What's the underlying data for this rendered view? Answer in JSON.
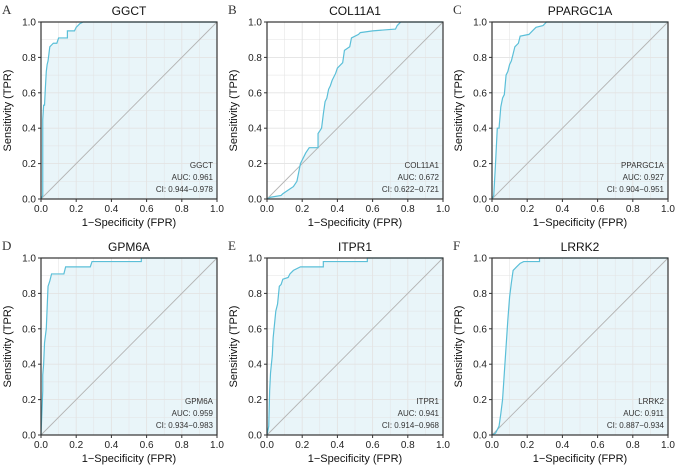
{
  "chart_data": [
    {
      "type": "line",
      "panel": "A",
      "title": "GGCT",
      "xlabel": "1−Specificity (FPR)",
      "ylabel": "Sensitivity (TPR)",
      "xlim": [
        0,
        1
      ],
      "ylim": [
        0,
        1
      ],
      "xticks": [
        "0.0",
        "0.2",
        "0.4",
        "0.6",
        "0.8",
        "1.0"
      ],
      "yticks": [
        "0.0",
        "0.2",
        "0.4",
        "0.6",
        "0.8",
        "1.0"
      ],
      "legend": [
        "GGCT",
        "AUC: 0.961",
        "CI: 0.944−0.978"
      ],
      "auc": 0.961,
      "points": [
        [
          0,
          0
        ],
        [
          0.01,
          0.02
        ],
        [
          0.01,
          0.45
        ],
        [
          0.015,
          0.53
        ],
        [
          0.02,
          0.53
        ],
        [
          0.025,
          0.63
        ],
        [
          0.03,
          0.72
        ],
        [
          0.035,
          0.76
        ],
        [
          0.04,
          0.78
        ],
        [
          0.05,
          0.86
        ],
        [
          0.06,
          0.87
        ],
        [
          0.07,
          0.88
        ],
        [
          0.09,
          0.88
        ],
        [
          0.1,
          0.91
        ],
        [
          0.15,
          0.91
        ],
        [
          0.15,
          0.95
        ],
        [
          0.19,
          0.95
        ],
        [
          0.2,
          0.97
        ],
        [
          0.21,
          0.98
        ],
        [
          0.22,
          0.99
        ],
        [
          0.24,
          1
        ],
        [
          1,
          1
        ]
      ]
    },
    {
      "type": "line",
      "panel": "B",
      "title": "COL11A1",
      "xlabel": "1−Specificity (FPR)",
      "ylabel": "Sensitivity (TPR)",
      "xlim": [
        0,
        1
      ],
      "ylim": [
        0,
        1
      ],
      "xticks": [
        "0.0",
        "0.2",
        "0.4",
        "0.6",
        "0.8",
        "1.0"
      ],
      "yticks": [
        "0.0",
        "0.2",
        "0.4",
        "0.6",
        "0.8",
        "1.0"
      ],
      "legend": [
        "COL11A1",
        "AUC: 0.672",
        "CI: 0.622−0.721"
      ],
      "auc": 0.672,
      "points": [
        [
          0,
          0
        ],
        [
          0.02,
          0.01
        ],
        [
          0.08,
          0.02
        ],
        [
          0.09,
          0.03
        ],
        [
          0.12,
          0.05
        ],
        [
          0.15,
          0.07
        ],
        [
          0.17,
          0.1
        ],
        [
          0.18,
          0.15
        ],
        [
          0.19,
          0.2
        ],
        [
          0.2,
          0.22
        ],
        [
          0.22,
          0.26
        ],
        [
          0.24,
          0.29
        ],
        [
          0.29,
          0.29
        ],
        [
          0.29,
          0.37
        ],
        [
          0.31,
          0.4
        ],
        [
          0.32,
          0.48
        ],
        [
          0.33,
          0.55
        ],
        [
          0.34,
          0.57
        ],
        [
          0.35,
          0.62
        ],
        [
          0.36,
          0.64
        ],
        [
          0.37,
          0.67
        ],
        [
          0.39,
          0.71
        ],
        [
          0.4,
          0.74
        ],
        [
          0.43,
          0.77
        ],
        [
          0.44,
          0.84
        ],
        [
          0.47,
          0.86
        ],
        [
          0.48,
          0.91
        ],
        [
          0.52,
          0.93
        ],
        [
          0.53,
          0.94
        ],
        [
          0.6,
          0.95
        ],
        [
          0.73,
          0.96
        ],
        [
          0.74,
          0.98
        ],
        [
          0.76,
          1
        ],
        [
          1,
          1
        ]
      ]
    },
    {
      "type": "line",
      "panel": "C",
      "title": "PPARGC1A",
      "xlabel": "1−Specificity (FPR)",
      "ylabel": "Sensitivity (TPR)",
      "xlim": [
        0,
        1
      ],
      "ylim": [
        0,
        1
      ],
      "xticks": [
        "0.0",
        "0.2",
        "0.4",
        "0.6",
        "0.8",
        "1.0"
      ],
      "yticks": [
        "0.0",
        "0.2",
        "0.4",
        "0.6",
        "0.8",
        "1.0"
      ],
      "legend": [
        "PPARGC1A",
        "AUC: 0.927",
        "CI: 0.904−0.951"
      ],
      "auc": 0.927,
      "points": [
        [
          0,
          0
        ],
        [
          0.01,
          0.02
        ],
        [
          0.02,
          0.2
        ],
        [
          0.03,
          0.4
        ],
        [
          0.04,
          0.4
        ],
        [
          0.05,
          0.52
        ],
        [
          0.06,
          0.57
        ],
        [
          0.07,
          0.59
        ],
        [
          0.08,
          0.7
        ],
        [
          0.09,
          0.72
        ],
        [
          0.1,
          0.76
        ],
        [
          0.11,
          0.78
        ],
        [
          0.12,
          0.82
        ],
        [
          0.13,
          0.86
        ],
        [
          0.15,
          0.88
        ],
        [
          0.16,
          0.92
        ],
        [
          0.21,
          0.93
        ],
        [
          0.23,
          0.95
        ],
        [
          0.25,
          0.97
        ],
        [
          0.29,
          0.98
        ],
        [
          0.31,
          1
        ],
        [
          1,
          1
        ]
      ]
    },
    {
      "type": "line",
      "panel": "D",
      "title": "GPM6A",
      "xlabel": "1−Specificity (FPR)",
      "ylabel": "Sensitivity (TPR)",
      "xlim": [
        0,
        1
      ],
      "ylim": [
        0,
        1
      ],
      "xticks": [
        "0.0",
        "0.2",
        "0.4",
        "0.6",
        "0.8",
        "1.0"
      ],
      "yticks": [
        "0.0",
        "0.2",
        "0.4",
        "0.6",
        "0.8",
        "1.0"
      ],
      "legend": [
        "GPM6A",
        "AUC: 0.959",
        "CI: 0.934−0.983"
      ],
      "auc": 0.959,
      "points": [
        [
          0,
          0
        ],
        [
          0.01,
          0.25
        ],
        [
          0.01,
          0.34
        ],
        [
          0.015,
          0.4
        ],
        [
          0.02,
          0.52
        ],
        [
          0.03,
          0.6
        ],
        [
          0.035,
          0.72
        ],
        [
          0.04,
          0.84
        ],
        [
          0.05,
          0.87
        ],
        [
          0.06,
          0.91
        ],
        [
          0.13,
          0.91
        ],
        [
          0.14,
          0.95
        ],
        [
          0.28,
          0.95
        ],
        [
          0.29,
          0.98
        ],
        [
          0.57,
          0.98
        ],
        [
          0.57,
          1
        ],
        [
          1,
          1
        ]
      ]
    },
    {
      "type": "line",
      "panel": "E",
      "title": "ITPR1",
      "xlabel": "1−Specificity (FPR)",
      "ylabel": "Sensitivity (TPR)",
      "xlim": [
        0,
        1
      ],
      "ylim": [
        0,
        1
      ],
      "xticks": [
        "0.0",
        "0.2",
        "0.4",
        "0.6",
        "0.8",
        "1.0"
      ],
      "yticks": [
        "0.0",
        "0.2",
        "0.4",
        "0.6",
        "0.8",
        "1.0"
      ],
      "legend": [
        "ITPR1",
        "AUC: 0.941",
        "CI: 0.914−0.968"
      ],
      "auc": 0.941,
      "points": [
        [
          0,
          0
        ],
        [
          0.01,
          0.05
        ],
        [
          0.015,
          0.25
        ],
        [
          0.02,
          0.35
        ],
        [
          0.03,
          0.45
        ],
        [
          0.035,
          0.55
        ],
        [
          0.05,
          0.7
        ],
        [
          0.06,
          0.74
        ],
        [
          0.07,
          0.84
        ],
        [
          0.08,
          0.85
        ],
        [
          0.09,
          0.88
        ],
        [
          0.12,
          0.89
        ],
        [
          0.13,
          0.91
        ],
        [
          0.15,
          0.93
        ],
        [
          0.19,
          0.95
        ],
        [
          0.32,
          0.95
        ],
        [
          0.32,
          0.98
        ],
        [
          0.57,
          0.98
        ],
        [
          0.57,
          1
        ],
        [
          1,
          1
        ]
      ]
    },
    {
      "type": "line",
      "panel": "F",
      "title": "LRRK2",
      "xlabel": "1−Specificity (FPR)",
      "ylabel": "Sensitivity (TPR)",
      "xlim": [
        0,
        1
      ],
      "ylim": [
        0,
        1
      ],
      "xticks": [
        "0.0",
        "0.2",
        "0.4",
        "0.6",
        "0.8",
        "1.0"
      ],
      "yticks": [
        "0.0",
        "0.2",
        "0.4",
        "0.6",
        "0.8",
        "1.0"
      ],
      "legend": [
        "LRRK2",
        "AUC: 0.911",
        "CI: 0.887−0.934"
      ],
      "auc": 0.911,
      "points": [
        [
          0,
          0
        ],
        [
          0.02,
          0.01
        ],
        [
          0.04,
          0.05
        ],
        [
          0.05,
          0.12
        ],
        [
          0.06,
          0.2
        ],
        [
          0.07,
          0.35
        ],
        [
          0.08,
          0.5
        ],
        [
          0.09,
          0.65
        ],
        [
          0.1,
          0.78
        ],
        [
          0.11,
          0.86
        ],
        [
          0.12,
          0.93
        ],
        [
          0.14,
          0.95
        ],
        [
          0.16,
          0.97
        ],
        [
          0.18,
          0.98
        ],
        [
          0.27,
          0.98
        ],
        [
          0.27,
          1
        ],
        [
          1,
          1
        ]
      ]
    }
  ],
  "colors": {
    "curve": "#5bbfd8",
    "fill": "#e9f5f9",
    "diagonal": "#b4b4b4",
    "grid": "#e3e3e3",
    "frame": "#333333"
  },
  "grid": true,
  "legend_placement": "bottom-right"
}
